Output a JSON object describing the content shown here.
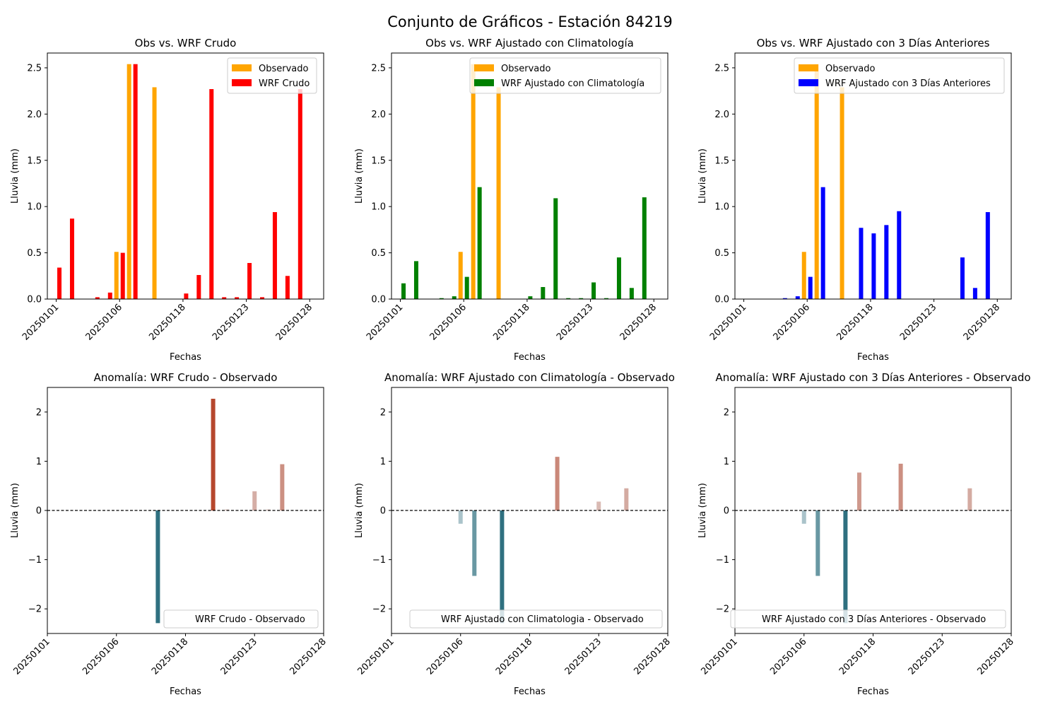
{
  "figure_title": "Conjunto de Gráficos - Estación 84219",
  "colors": {
    "observado": "#ffa500",
    "wrf_crudo": "#ff0000",
    "wrf_clim": "#008000",
    "wrf_3d": "#0000ff",
    "anomaly_positive": "#b5452b",
    "anomaly_negative": "#2e7080",
    "zero_line": "#000000"
  },
  "chart_data": [
    {
      "type": "bar",
      "title": "Obs vs. WRF Crudo",
      "xlabel": "Fechas",
      "ylabel": "Lluvia (mm)",
      "ylim": [
        0,
        2.66
      ],
      "yticks": [
        0.0,
        0.5,
        1.0,
        1.5,
        2.0,
        2.5
      ],
      "ytick_labels": [
        "0.0",
        "0.5",
        "1.0",
        "1.5",
        "2.0",
        "2.5"
      ],
      "xticks": [
        0,
        5,
        10,
        15,
        20
      ],
      "xtick_labels": [
        "20250101",
        "20250106",
        "20250118",
        "20250123",
        "20250128"
      ],
      "xlim": [
        -0.7,
        21.1
      ],
      "legend": "top-right",
      "series": [
        {
          "name": "Observado",
          "color_key": "observado",
          "offset": -0.25,
          "values": [
            0,
            0,
            0,
            0,
            0,
            0.51,
            2.54,
            0,
            2.29,
            0,
            0,
            0,
            0,
            0,
            0,
            0,
            0,
            0,
            0,
            0
          ]
        },
        {
          "name": "WRF Crudo",
          "color_key": "wrf_crudo",
          "offset": 0.25,
          "values": [
            0.34,
            0.87,
            0,
            0.02,
            0.07,
            0.5,
            2.54,
            0,
            0,
            0,
            0.06,
            0.26,
            2.27,
            0.02,
            0.02,
            0.39,
            0.02,
            0.94,
            0.25,
            2.27
          ]
        }
      ]
    },
    {
      "type": "bar",
      "title": "Obs vs. WRF Ajustado con Climatología",
      "xlabel": "Fechas",
      "ylabel": "Lluvia (mm)",
      "ylim": [
        0,
        2.66
      ],
      "yticks": [
        0.0,
        0.5,
        1.0,
        1.5,
        2.0,
        2.5
      ],
      "ytick_labels": [
        "0.0",
        "0.5",
        "1.0",
        "1.5",
        "2.0",
        "2.5"
      ],
      "xticks": [
        0,
        5,
        10,
        15,
        20
      ],
      "xtick_labels": [
        "20250101",
        "20250106",
        "20250118",
        "20250123",
        "20250128"
      ],
      "xlim": [
        -0.7,
        21.1
      ],
      "legend": "top-right",
      "series": [
        {
          "name": "Observado",
          "color_key": "observado",
          "offset": -0.25,
          "values": [
            0,
            0,
            0,
            0,
            0,
            0.51,
            2.54,
            0,
            2.29,
            0,
            0,
            0,
            0,
            0,
            0,
            0,
            0,
            0,
            0,
            0
          ]
        },
        {
          "name": "WRF Ajustado con Climatología",
          "color_key": "wrf_clim",
          "offset": 0.25,
          "values": [
            0.17,
            0.41,
            0,
            0.01,
            0.03,
            0.24,
            1.21,
            0,
            0,
            0,
            0.03,
            0.13,
            1.09,
            0.01,
            0.01,
            0.18,
            0.01,
            0.45,
            0.12,
            1.1
          ]
        }
      ]
    },
    {
      "type": "bar",
      "title": "Obs vs. WRF Ajustado con 3 Días Anteriores",
      "xlabel": "Fechas",
      "ylabel": "Lluvia (mm)",
      "ylim": [
        0,
        2.66
      ],
      "yticks": [
        0.0,
        0.5,
        1.0,
        1.5,
        2.0,
        2.5
      ],
      "ytick_labels": [
        "0.0",
        "0.5",
        "1.0",
        "1.5",
        "2.0",
        "2.5"
      ],
      "xticks": [
        0,
        5,
        10,
        15,
        20
      ],
      "xtick_labels": [
        "20250101",
        "20250106",
        "20250118",
        "20250123",
        "20250128"
      ],
      "xlim": [
        -0.7,
        21.1
      ],
      "legend": "top-right",
      "series": [
        {
          "name": "Observado",
          "color_key": "observado",
          "offset": -0.25,
          "values": [
            0,
            0,
            0,
            0,
            0,
            0.51,
            2.54,
            0,
            2.29,
            0,
            0,
            0,
            0,
            0,
            0,
            0,
            0,
            0,
            0,
            0
          ]
        },
        {
          "name": "WRF Ajustado con 3 Días Anteriores",
          "color_key": "wrf_3d",
          "offset": 0.25,
          "values": [
            0,
            0,
            0,
            0.01,
            0.03,
            0.24,
            1.21,
            0,
            0,
            0.77,
            0.71,
            0.8,
            0.95,
            0,
            0,
            0,
            0,
            0.45,
            0.12,
            0.94
          ]
        }
      ]
    },
    {
      "type": "bar",
      "title": "Anomalía: WRF Crudo - Observado",
      "xlabel": "Fechas",
      "ylabel": "Lluvia (mm)",
      "ylim": [
        -2.5,
        2.5
      ],
      "yticks": [
        -2,
        -1,
        0,
        1,
        2
      ],
      "ytick_labels": [
        "−2",
        "−1",
        "0",
        "1",
        "2"
      ],
      "xticks": [
        0,
        5,
        10,
        15,
        20
      ],
      "xtick_labels": [
        "20250101",
        "20250106",
        "20250118",
        "20250123",
        "20250128"
      ],
      "xlim": [
        0,
        20
      ],
      "legend": "bottom-right",
      "zero_line": true,
      "series": [
        {
          "name": "WRF Crudo - Observado",
          "x": [
            8,
            12,
            13,
            15,
            16,
            17
          ],
          "values": [
            -2.29,
            2.27,
            0.02,
            0.39,
            0.02,
            0.94
          ]
        }
      ]
    },
    {
      "type": "bar",
      "title": "Anomalía: WRF Ajustado con Climatología - Observado",
      "xlabel": "Fechas",
      "ylabel": "Lluvia (mm)",
      "ylim": [
        -2.5,
        2.5
      ],
      "yticks": [
        -2,
        -1,
        0,
        1,
        2
      ],
      "ytick_labels": [
        "−2",
        "−1",
        "0",
        "1",
        "2"
      ],
      "xticks": [
        0,
        5,
        10,
        15,
        20
      ],
      "xtick_labels": [
        "20250101",
        "20250106",
        "20250118",
        "20250123",
        "20250128"
      ],
      "xlim": [
        0,
        20
      ],
      "legend": "bottom-right",
      "zero_line": true,
      "series": [
        {
          "name": "WRF Ajustado con Climatologia - Observado",
          "x": [
            5,
            6,
            8,
            12,
            15,
            17
          ],
          "values": [
            -0.27,
            -1.33,
            -2.29,
            1.09,
            0.18,
            0.45
          ]
        }
      ]
    },
    {
      "type": "bar",
      "title": "Anomalía: WRF Ajustado con 3 Días Anteriores - Observado",
      "xlabel": "Fechas",
      "ylabel": "Lluvia (mm)",
      "ylim": [
        -2.5,
        2.5
      ],
      "yticks": [
        -2,
        -1,
        0,
        1,
        2
      ],
      "ytick_labels": [
        "−2",
        "−1",
        "0",
        "1",
        "2"
      ],
      "xticks": [
        0,
        5,
        10,
        15,
        20
      ],
      "xtick_labels": [
        "20250101",
        "20250106",
        "20250118",
        "20250123",
        "20250128"
      ],
      "xlim": [
        0,
        20
      ],
      "legend": "bottom-right",
      "zero_line": true,
      "series": [
        {
          "name": "WRF Ajustado con 3 Días Anteriores - Observado",
          "x": [
            5,
            6,
            8,
            9,
            12,
            17
          ],
          "values": [
            -0.27,
            -1.33,
            -2.29,
            0.77,
            0.95,
            0.45
          ]
        }
      ]
    }
  ]
}
